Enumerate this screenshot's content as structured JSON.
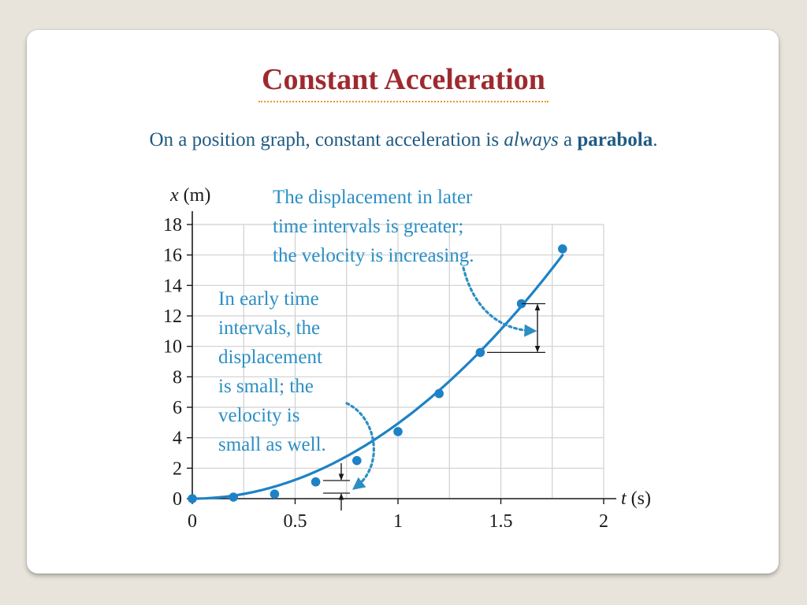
{
  "slide": {
    "title": "Constant Acceleration",
    "subtitle_parts": [
      "On a position graph, constant acceleration is ",
      "always",
      " a ",
      "parabola",
      "."
    ]
  },
  "colors": {
    "title": "#9e2a2f",
    "title_underline": "#e8962e",
    "subtitle": "#1f5a83",
    "curve": "#1e82c6",
    "callout_text": "#2b8fc4",
    "grid": "#d0d0d0"
  },
  "chart_data": {
    "type": "scatter",
    "xlabel_var": "t",
    "xlabel_unit": "(s)",
    "ylabel_var": "x",
    "ylabel_unit": "(m)",
    "xlim": [
      0,
      2
    ],
    "ylim": [
      0,
      18
    ],
    "x_ticks": [
      "0",
      "0.5",
      "1",
      "1.5",
      "2"
    ],
    "y_ticks": [
      "0",
      "2",
      "4",
      "6",
      "8",
      "10",
      "12",
      "14",
      "16",
      "18"
    ],
    "grid": true,
    "series": [
      {
        "x": [
          0,
          0.2,
          0.4,
          0.6,
          0.8,
          1.0,
          1.2,
          1.4,
          1.6,
          1.8
        ],
        "y": [
          0,
          0.1,
          0.3,
          1.1,
          2.5,
          4.4,
          6.9,
          9.6,
          12.8,
          16.4
        ],
        "curve": "parabola x = 5.06 t^2"
      }
    ],
    "annotations": [
      {
        "name": "late-interval-callout",
        "lines": [
          "The displacement in later",
          "time intervals is greater;",
          "the velocity is increasing."
        ]
      },
      {
        "name": "early-interval-callout",
        "lines": [
          "In early time",
          "intervals, the",
          "displacement",
          "is small; the",
          "velocity is",
          "small as well."
        ]
      }
    ]
  }
}
